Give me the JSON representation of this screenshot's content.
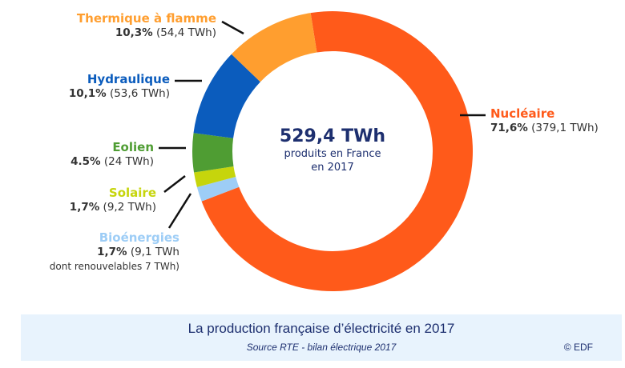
{
  "chart_data": {
    "type": "pie",
    "title": "La production française d’électricité en 2017",
    "source": "Source RTE - bilan électrique 2017",
    "copyright": "© EDF",
    "center": {
      "total": "529,4 TWh",
      "line1": "produits en France",
      "line2": "en 2017"
    },
    "slices": [
      {
        "name": "Nucléaire",
        "percent": 71.6,
        "percent_label": "71,6%",
        "value_label": "(379,1 TWh)",
        "twh": 379.1,
        "color": "#ff5a1a"
      },
      {
        "name": "Bioénergies",
        "percent": 1.7,
        "percent_label": "1,7%",
        "value_label": "(9,1 TWh",
        "extra": "dont renouvelables 7 TWh)",
        "twh": 9.1,
        "color": "#9dcdf6"
      },
      {
        "name": "Solaire",
        "percent": 1.7,
        "percent_label": "1,7%",
        "value_label": "(9,2 TWh)",
        "twh": 9.2,
        "color": "#c6d50c"
      },
      {
        "name": "Eolien",
        "percent": 4.5,
        "percent_label": "4.5%",
        "value_label": "(24 TWh)",
        "twh": 24,
        "color": "#4f9d33"
      },
      {
        "name": "Hydraulique",
        "percent": 10.1,
        "percent_label": "10,1%",
        "value_label": "(53,6 TWh)",
        "twh": 53.6,
        "color": "#0b5cbd"
      },
      {
        "name": "Thermique à flamme",
        "percent": 10.3,
        "percent_label": "10,3%",
        "value_label": "(54,4 TWh)",
        "twh": 54.4,
        "color": "#ff9e2f"
      }
    ]
  }
}
